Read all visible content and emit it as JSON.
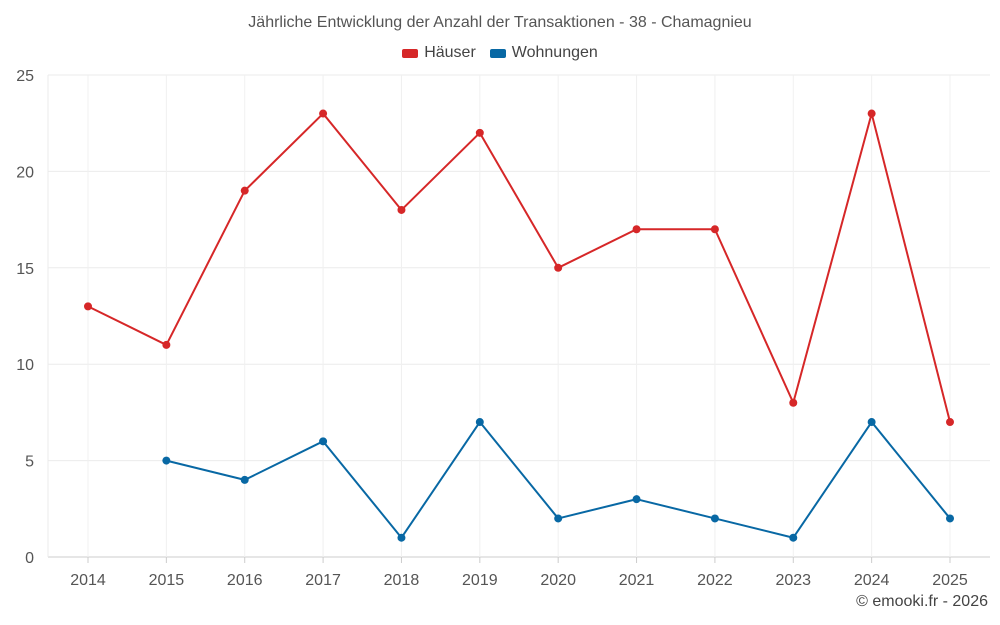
{
  "chart_data": {
    "type": "line",
    "title": "Jährliche Entwicklung der Anzahl der Transaktionen - 38 - Chamagnieu",
    "categories": [
      "2014",
      "2015",
      "2016",
      "2017",
      "2018",
      "2019",
      "2020",
      "2021",
      "2022",
      "2023",
      "2024",
      "2025"
    ],
    "yticks": [
      "0",
      "5",
      "10",
      "15",
      "20",
      "25"
    ],
    "ylim": [
      0,
      25
    ],
    "xlabel": "",
    "ylabel": "",
    "grid": true,
    "legend_position": "top-center",
    "series": [
      {
        "name": "Häuser",
        "color": "#d62728",
        "values": [
          13,
          11,
          19,
          23,
          18,
          22,
          15,
          17,
          17,
          8,
          23,
          7
        ]
      },
      {
        "name": "Wohnungen",
        "color": "#0868a4",
        "values": [
          null,
          5,
          4,
          6,
          1,
          7,
          2,
          3,
          2,
          1,
          7,
          2
        ]
      }
    ]
  },
  "footer": {
    "credit": "© emooki.fr - 2026"
  }
}
